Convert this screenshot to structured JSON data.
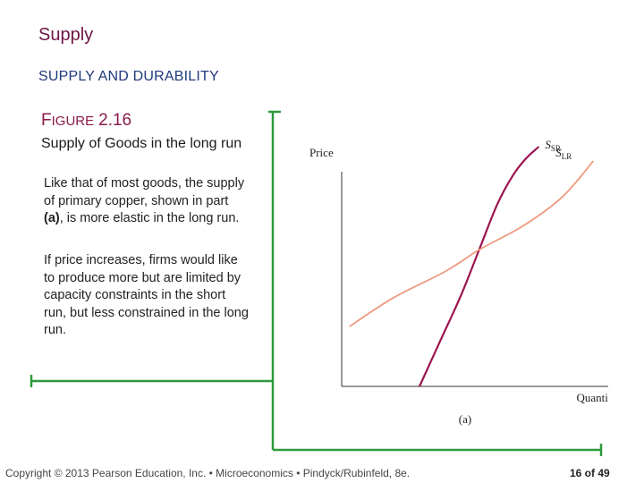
{
  "slide": {
    "title": "Supply",
    "section": "SUPPLY AND DURABILITY",
    "figure_label_first": "F",
    "figure_label_rest": "IGURE",
    "figure_number": "2.16",
    "caption": "Supply of Goods in the long run",
    "para1_before": "Like that of most goods, the supply of primary copper, shown in part ",
    "para1_bold": "(a)",
    "para1_after": ", is more elastic in the long run.",
    "para2": "If price increases, firms would like to produce more but are limited by capacity constraints in the short run, but less constrained in the long run.",
    "footer": "Copyright © 2013 Pearson Education, Inc. • Microeconomics • Pindyck/Rubinfeld, 8e.",
    "page": "16 of 49"
  },
  "chart_data": {
    "type": "line",
    "title": "",
    "xlabel": "Quantity",
    "ylabel": "Price",
    "panel_label": "(a)",
    "grid": false,
    "legend": "none",
    "series": [
      {
        "name": "S_SR",
        "label_main": "S",
        "label_sub": "SR",
        "color": "#9b1450",
        "x": [
          0.3,
          0.38,
          0.46,
          0.53,
          0.6,
          0.66,
          0.71,
          0.76
        ],
        "y": [
          0.0,
          0.19,
          0.38,
          0.57,
          0.76,
          0.88,
          0.95,
          1.0
        ]
      },
      {
        "name": "S_LR",
        "label_main": "S",
        "label_sub": "LR",
        "color": "#ee9a80",
        "x": [
          0.03,
          0.2,
          0.4,
          0.53,
          0.7,
          0.85,
          0.97
        ],
        "y": [
          0.25,
          0.37,
          0.48,
          0.57,
          0.67,
          0.79,
          0.94
        ]
      }
    ]
  }
}
